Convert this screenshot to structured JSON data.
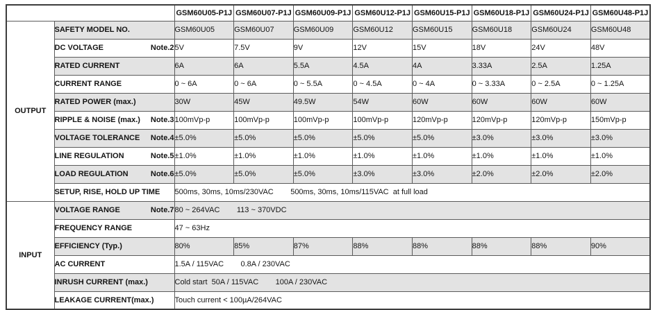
{
  "table": {
    "corner": "",
    "col_headers": [
      "GSM60U05-P1J",
      "GSM60U07-P1J",
      "GSM60U09-P1J",
      "GSM60U12-P1J",
      "GSM60U15-P1J",
      "GSM60U18-P1J",
      "GSM60U24-P1J",
      "GSM60U48-P1J"
    ],
    "sections": [
      {
        "label": "OUTPUT",
        "rows": [
          {
            "label": "SAFETY MODEL NO.",
            "cells": [
              "GSM60U05",
              "GSM60U07",
              "GSM60U09",
              "GSM60U12",
              "GSM60U15",
              "GSM60U18",
              "GSM60U24",
              "GSM60U48"
            ]
          },
          {
            "label": "DC VOLTAGE",
            "note": "Note.2",
            "cells": [
              "5V",
              "7.5V",
              "9V",
              "12V",
              "15V",
              "18V",
              "24V",
              "48V"
            ]
          },
          {
            "label": "RATED CURRENT",
            "cells": [
              "6A",
              "6A",
              "5.5A",
              "4.5A",
              "4A",
              "3.33A",
              "2.5A",
              "1.25A"
            ]
          },
          {
            "label": "CURRENT RANGE",
            "cells": [
              "0 ~ 6A",
              "0 ~ 6A",
              "0 ~ 5.5A",
              "0 ~ 4.5A",
              "0 ~ 4A",
              "0 ~ 3.33A",
              "0 ~ 2.5A",
              "0 ~ 1.25A"
            ]
          },
          {
            "label": "RATED POWER (max.)",
            "cells": [
              "30W",
              "45W",
              "49.5W",
              "54W",
              "60W",
              "60W",
              "60W",
              "60W"
            ]
          },
          {
            "label": "RIPPLE & NOISE (max.)",
            "note": "Note.3",
            "cells": [
              "100mVp-p",
              "100mVp-p",
              "100mVp-p",
              "100mVp-p",
              "120mVp-p",
              "120mVp-p",
              "120mVp-p",
              "150mVp-p"
            ]
          },
          {
            "label": "VOLTAGE TOLERANCE",
            "note": "Note.4",
            "cells": [
              "±5.0%",
              "±5.0%",
              "±5.0%",
              "±5.0%",
              "±5.0%",
              "±3.0%",
              "±3.0%",
              "±3.0%"
            ]
          },
          {
            "label": "LINE REGULATION",
            "note": "Note.5",
            "cells": [
              "±1.0%",
              "±1.0%",
              "±1.0%",
              "±1.0%",
              "±1.0%",
              "±1.0%",
              "±1.0%",
              "±1.0%"
            ]
          },
          {
            "label": "LOAD REGULATION",
            "note": "Note.6",
            "cells": [
              "±5.0%",
              "±5.0%",
              "±5.0%",
              "±3.0%",
              "±3.0%",
              "±2.0%",
              "±2.0%",
              "±2.0%"
            ]
          },
          {
            "label": "SETUP, RISE, HOLD UP TIME",
            "span": "500ms, 30ms, 10ms/230VAC        500ms, 30ms, 10ms/115VAC  at full load"
          }
        ]
      },
      {
        "label": "INPUT",
        "rows": [
          {
            "label": "VOLTAGE RANGE",
            "note": "Note.7",
            "span": "80 ~ 264VAC        113 ~ 370VDC"
          },
          {
            "label": "FREQUENCY RANGE",
            "span": "47 ~ 63Hz"
          },
          {
            "label": "EFFICIENCY (Typ.)",
            "cells": [
              "80%",
              "85%",
              "87%",
              "88%",
              "88%",
              "88%",
              "88%",
              "90%"
            ]
          },
          {
            "label": "AC CURRENT",
            "span": "1.5A / 115VAC        0.8A / 230VAC"
          },
          {
            "label": "INRUSH CURRENT (max.)",
            "span": "Cold start  50A / 115VAC        100A / 230VAC"
          },
          {
            "label": "LEAKAGE CURRENT(max.)",
            "span": "Touch current < 100µA/264VAC"
          }
        ]
      }
    ],
    "colors": {
      "stripe": "#e3e3e3",
      "border": "#5a5a5a",
      "outer_border": "#3c3c3c",
      "text": "#141414"
    }
  }
}
